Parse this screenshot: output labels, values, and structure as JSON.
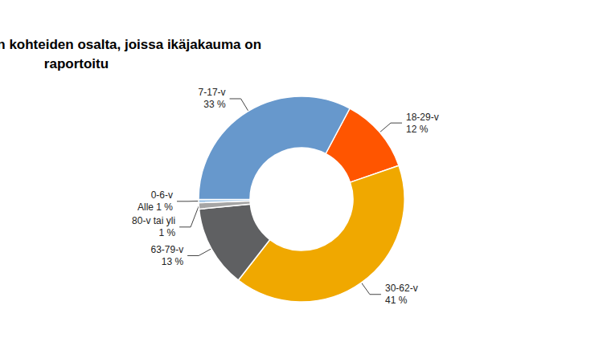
{
  "chart_data": {
    "type": "pie",
    "title": "Ikäjakauma niiden kohteiden osalta, joissa ikäjakauma on raportoitu",
    "categories": [
      "18-29-v",
      "30-62-v",
      "63-79-v",
      "80-v tai yli",
      "0-6-v",
      "7-17-v"
    ],
    "values": [
      12,
      41,
      13,
      1,
      0.5,
      33
    ],
    "value_labels": [
      "12 %",
      "41 %",
      "13 %",
      "1 %",
      "Alle 1 %",
      "33 %"
    ],
    "colors": [
      "#ff5500",
      "#f0a800",
      "#5f6062",
      "#a5a5a5",
      "#9dc3e6",
      "#6798cc"
    ],
    "data_labels": true
  }
}
